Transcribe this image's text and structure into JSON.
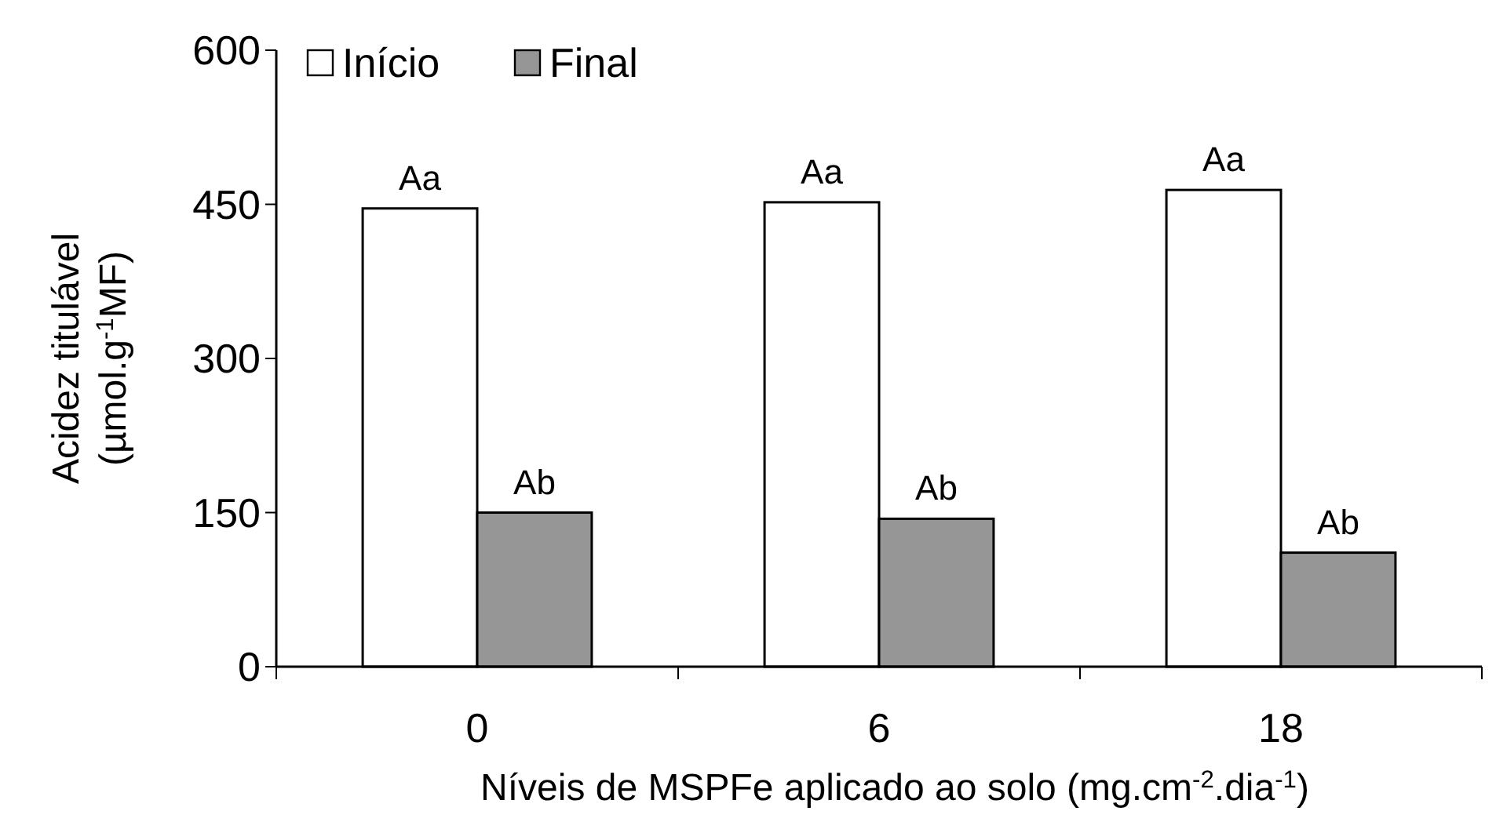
{
  "chart_data": {
    "type": "bar",
    "ylabel": "Acidez titulável\n(µmol.g$^{-1}$MF)",
    "xlabel": "Níveis de MSPFe aplicado ao solo (mg.cm$^{-2}$.dia$^{-1}$)",
    "categories": [
      "0",
      "6",
      "18"
    ],
    "series": [
      {
        "name": "Início",
        "color": "#ffffff",
        "values": [
          446,
          452,
          464
        ]
      },
      {
        "name": "Final",
        "color": "#969696",
        "values": [
          150,
          144,
          111
        ]
      }
    ],
    "ylim": [
      0,
      600
    ],
    "yticks": [
      0,
      150,
      300,
      450,
      600
    ],
    "grid": false,
    "legend": "top left",
    "annotations": [
      {
        "text": "Aa",
        "x": "0",
        "y": 446
      },
      {
        "text": "Aa",
        "x": "6",
        "y": 452
      },
      {
        "text": "Aa",
        "x": "18",
        "y": 464
      },
      {
        "text": "Ab",
        "x": "0",
        "y": 150
      },
      {
        "text": "Ab",
        "x": "6",
        "y": 144
      },
      {
        "text": "Ab",
        "x": "18",
        "y": 111
      }
    ]
  }
}
